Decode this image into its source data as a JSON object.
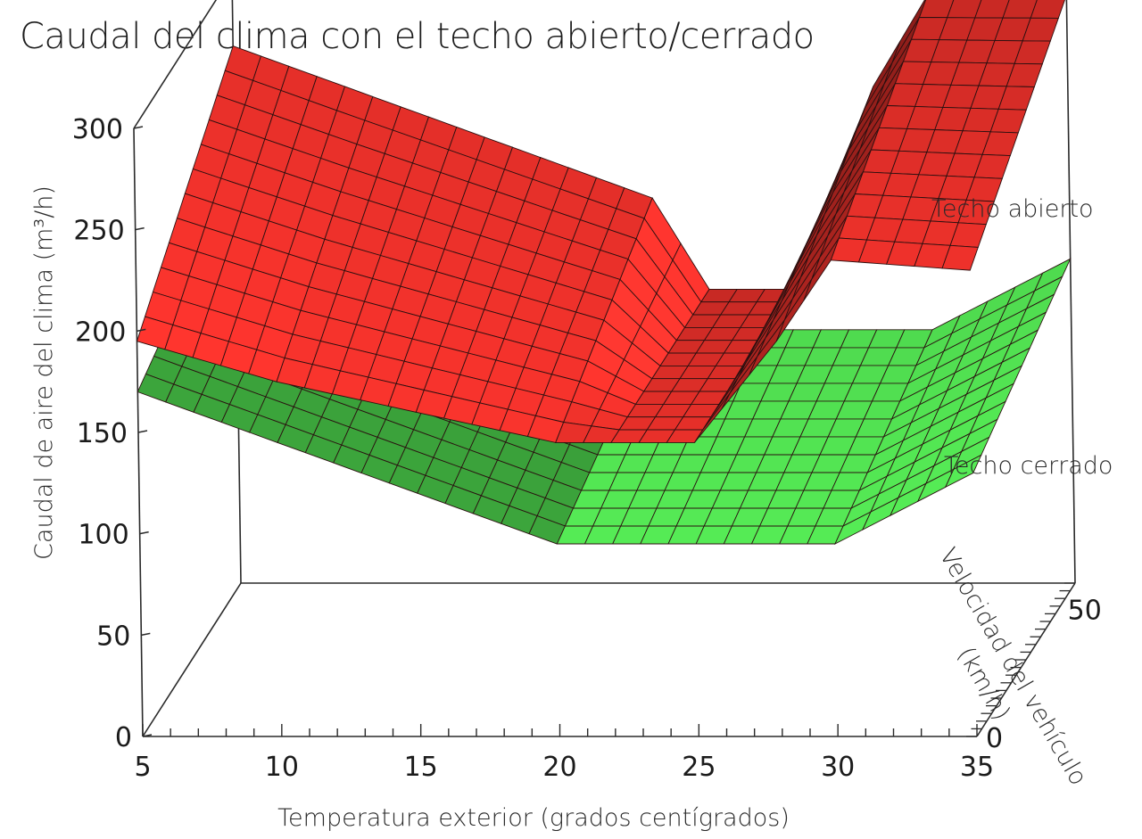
{
  "title": "Caudal del clima con el techo abierto/cerrado",
  "chart_data": {
    "type": "surface-3d",
    "title": "Caudal del clima con el techo abierto/cerrado",
    "xlabel": "Temperatura exterior (grados centígrados)",
    "ylabel": "Caudal de aire del clima (m³/h)",
    "zlabel": "Velocidad del vehículo (km/h)",
    "x_ticks": [
      "5",
      "10",
      "15",
      "20",
      "25",
      "30",
      "35"
    ],
    "y_ticks": [
      "0",
      "50",
      "100",
      "150",
      "200",
      "250",
      "300"
    ],
    "z_ticks": [
      "0",
      "50"
    ],
    "xlim": [
      5,
      35
    ],
    "ylim": [
      0,
      300
    ],
    "zlim": [
      0,
      60
    ],
    "x": [
      5,
      10,
      15,
      20,
      22,
      25,
      28,
      30,
      35
    ],
    "z": [
      0,
      60
    ],
    "series": [
      {
        "name": "Techo abierto",
        "color": "#e8302a",
        "values_at_speed_0": [
          195,
          175,
          160,
          145,
          145,
          145,
          195,
          235,
          230
        ],
        "values_at_speed_60": [
          265,
          240,
          215,
          190,
          145,
          145,
          245,
          290,
          290
        ]
      },
      {
        "name": "Techo cerrado",
        "color": "#3fae3f",
        "values_at_speed_0": [
          170,
          145,
          120,
          95,
          95,
          95,
          95,
          95,
          130
        ],
        "values_at_speed_60": [
          200,
          175,
          150,
          125,
          125,
          125,
          125,
          125,
          160
        ]
      }
    ]
  }
}
